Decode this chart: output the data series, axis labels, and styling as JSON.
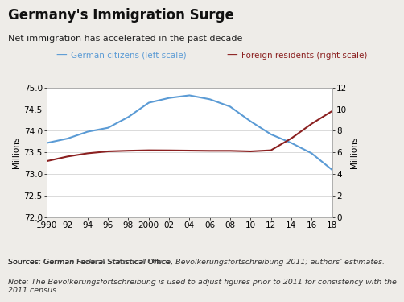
{
  "title": "Germany's Immigration Surge",
  "subtitle": "Net immigration has accelerated in the past decade",
  "legend_blue": "German citizens (left scale)",
  "legend_red": "Foreign residents (right scale)",
  "ylabel_left": "Millions",
  "ylabel_right": "Millions",
  "source_line1": "Sources: German Federal Statistical Office, ",
  "source_italic1": "Bevölkerungsfortschreibung 2011",
  "source_line2": "; authors’ estimates.",
  "note_normal": "Note: The ",
  "note_italic": "Bevölkerungsfortschreibung",
  "note_end": " is used to adjust figures prior to 2011 for consistency with the\n2011 census.",
  "years": [
    1990,
    1992,
    1994,
    1996,
    1998,
    2000,
    2002,
    2004,
    2006,
    2008,
    2010,
    2012,
    2014,
    2016,
    2018
  ],
  "german_citizens": [
    73.72,
    73.82,
    73.98,
    74.07,
    74.32,
    74.65,
    74.76,
    74.82,
    74.73,
    74.56,
    74.22,
    73.92,
    73.72,
    73.48,
    73.1
  ],
  "foreign_residents": [
    5.2,
    5.62,
    5.92,
    6.1,
    6.16,
    6.2,
    6.19,
    6.17,
    6.15,
    6.15,
    6.1,
    6.2,
    7.3,
    8.65,
    9.82
  ],
  "left_ylim": [
    72.0,
    75.0
  ],
  "right_ylim": [
    0,
    12
  ],
  "left_yticks": [
    72.0,
    72.5,
    73.0,
    73.5,
    74.0,
    74.5,
    75.0
  ],
  "right_yticks": [
    0,
    2,
    4,
    6,
    8,
    10,
    12
  ],
  "xticks": [
    1990,
    1992,
    1994,
    1996,
    1998,
    2000,
    2002,
    2004,
    2006,
    2008,
    2010,
    2012,
    2014,
    2016,
    2018
  ],
  "xtick_labels": [
    "1990",
    "92",
    "94",
    "96",
    "98",
    "2000",
    "02",
    "04",
    "06",
    "08",
    "10",
    "12",
    "14",
    "16",
    "18"
  ],
  "blue_color": "#5b9bd5",
  "red_color": "#8b2020",
  "bg_color": "#eeece8",
  "plot_bg_color": "#ffffff",
  "title_fontsize": 12,
  "subtitle_fontsize": 8,
  "axis_fontsize": 7.5,
  "legend_fontsize": 7.5,
  "note_fontsize": 6.8
}
